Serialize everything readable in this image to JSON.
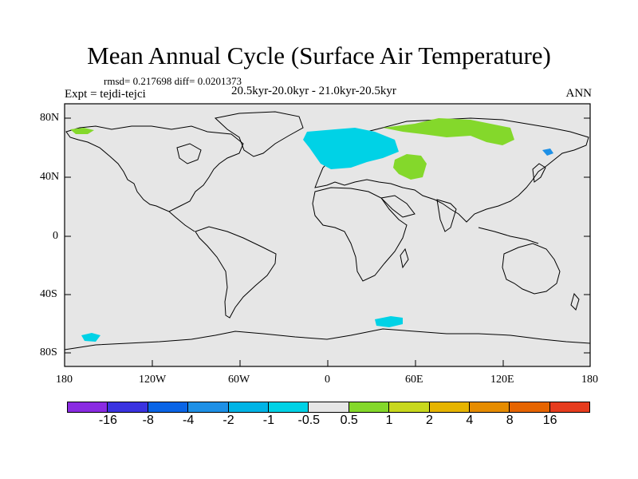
{
  "title": "Mean Annual Cycle (Surface Air Temperature)",
  "stats": "rmsd= 0.217698 diff= 0.0201373",
  "experiment": "Expt = tejdi-tejci",
  "period": "20.5kyr-20.0kyr - 21.0kyr-20.5kyr",
  "season": "ANN",
  "map": {
    "lat_ticks": [
      "80N",
      "40N",
      "0",
      "40S",
      "80S"
    ],
    "lon_ticks": [
      "180",
      "120W",
      "60W",
      "0",
      "60E",
      "120E",
      "180"
    ],
    "background_color": "#e6e6e6",
    "regions": [
      {
        "name": "north-atlantic-europe-cooling",
        "category": "-1 to -0.5",
        "color": "#00d2e6"
      },
      {
        "name": "northern-europe-asia-warming",
        "category": "0.5 to 1",
        "color": "#84d82b"
      },
      {
        "name": "central-asia-warming",
        "category": "0.5 to 1",
        "color": "#84d82b"
      },
      {
        "name": "alaska-canada-warming",
        "category": "0.5 to 1",
        "color": "#84d82b"
      },
      {
        "name": "kamchatka-cooling",
        "category": "-4 to -2",
        "color": "#1e90e6"
      },
      {
        "name": "southern-ocean-cooling",
        "category": "-1 to -0.5",
        "color": "#00d2e6"
      }
    ]
  },
  "colorbar": {
    "colors": [
      "#8a2be2",
      "#3a33e0",
      "#0a64e6",
      "#1e90e6",
      "#00b4e6",
      "#00d2e6",
      "#e6e6e6",
      "#84d82b",
      "#c8d81e",
      "#e6b400",
      "#e68c00",
      "#e66400",
      "#e63c1e"
    ],
    "labels": [
      "-16",
      "-8",
      "-4",
      "-2",
      "-1",
      "-0.5",
      "0.5",
      "1",
      "2",
      "4",
      "8",
      "16"
    ]
  }
}
